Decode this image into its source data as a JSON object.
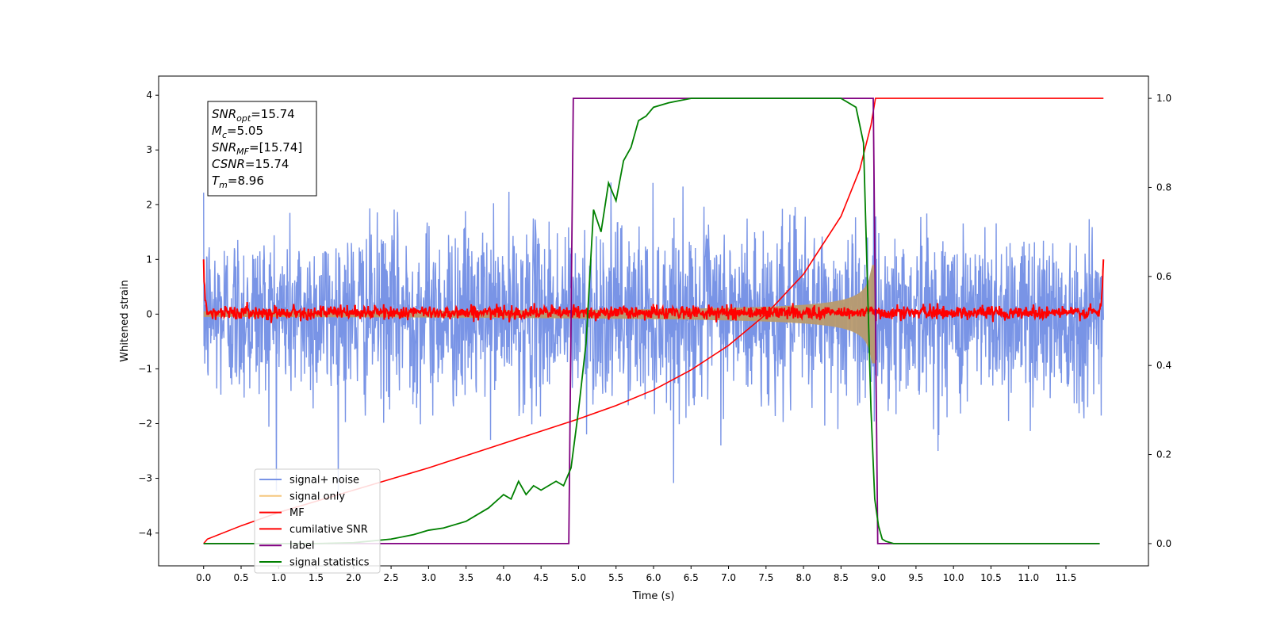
{
  "chart_data": {
    "type": "line",
    "title": "",
    "xlabel": "Time (s)",
    "ylabel": "Whitened strain",
    "xlim": [
      -0.6,
      12.6
    ],
    "ylim": [
      -4.6,
      4.35
    ],
    "y2lim": [
      -0.05,
      1.05
    ],
    "x_ticks": [
      0.0,
      0.5,
      1.0,
      1.5,
      2.0,
      2.5,
      3.0,
      3.5,
      4.0,
      4.5,
      5.0,
      5.5,
      6.0,
      6.5,
      7.0,
      7.5,
      8.0,
      8.5,
      9.0,
      9.5,
      10.0,
      10.5,
      11.0,
      11.5
    ],
    "x_tick_labels": [
      "0.0",
      "0.5",
      "1.0",
      "1.5",
      "2.0",
      "2.5",
      "3.0",
      "3.5",
      "4.0",
      "4.5",
      "5.0",
      "5.5",
      "6.0",
      "6.5",
      "7.0",
      "7.5",
      "8.0",
      "8.5",
      "9.0",
      "9.5",
      "10.0",
      "10.5",
      "11.0",
      "11.5"
    ],
    "y_ticks": [
      -4,
      -3,
      -2,
      -1,
      0,
      1,
      2,
      3,
      4
    ],
    "y_tick_labels": [
      "−4",
      "−3",
      "−2",
      "−1",
      "0",
      "1",
      "2",
      "3",
      "4"
    ],
    "y2_ticks": [
      0.0,
      0.2,
      0.4,
      0.6,
      0.8,
      1.0
    ],
    "y2_tick_labels": [
      "0.0",
      "0.2",
      "0.4",
      "0.6",
      "0.8",
      "1.0"
    ],
    "grid": false,
    "legend_position": "lower-left",
    "annotation": {
      "lines": [
        {
          "sym": "SNR",
          "sub": "opt",
          "value": "=15.74"
        },
        {
          "sym": "M",
          "sub": "c",
          "value": "=5.05"
        },
        {
          "sym": "SNR",
          "sub": "MF",
          "value": "=[15.74]"
        },
        {
          "sym": "CSNR",
          "sub": "",
          "value": "=15.74"
        },
        {
          "sym": "T",
          "sub": "m",
          "value": "=8.96"
        }
      ]
    },
    "series": [
      {
        "name": "signal+ noise",
        "color": "#7994e6",
        "axis": "left",
        "noise": {
          "t_start": 0.0,
          "t_end": 12.0,
          "points": 2400,
          "sigma": 0.8,
          "clip": 4.0
        }
      },
      {
        "name": "signal only",
        "color": "#f5c77e",
        "axis": "left",
        "envelope": {
          "t_start": 0.0,
          "t_end": 8.96,
          "a0": 0.05,
          "a_end": 0.9
        }
      },
      {
        "name": "MF",
        "color": "#ff0000",
        "axis": "left",
        "noise": {
          "t_start": 0.0,
          "t_end": 12.0,
          "points": 1800,
          "sigma": 0.06,
          "edge_value": 1.0
        }
      },
      {
        "name": "cumilative SNR",
        "color": "#ff0000",
        "axis": "right",
        "x": [
          0.0,
          0.05,
          0.5,
          1.0,
          2.0,
          3.0,
          4.0,
          5.0,
          5.5,
          6.0,
          6.5,
          7.0,
          7.5,
          8.0,
          8.5,
          8.75,
          8.9,
          8.96,
          8.97,
          12.0
        ],
        "y": [
          0.0,
          0.01,
          0.04,
          0.07,
          0.12,
          0.17,
          0.225,
          0.28,
          0.31,
          0.345,
          0.39,
          0.445,
          0.515,
          0.605,
          0.735,
          0.84,
          0.94,
          1.0,
          1.0,
          1.0
        ]
      },
      {
        "name": "label",
        "color": "#800080",
        "axis": "right",
        "x": [
          0.0,
          4.87,
          4.93,
          8.93,
          8.99,
          11.95
        ],
        "y": [
          0.0,
          0.0,
          1.0,
          1.0,
          0.0,
          0.0
        ]
      },
      {
        "name": "signal statistics",
        "color": "#008000",
        "axis": "right",
        "x": [
          0.0,
          0.5,
          1.0,
          1.5,
          2.0,
          2.5,
          2.8,
          3.0,
          3.2,
          3.5,
          3.8,
          4.0,
          4.1,
          4.2,
          4.3,
          4.4,
          4.5,
          4.6,
          4.7,
          4.8,
          4.9,
          5.0,
          5.1,
          5.2,
          5.3,
          5.4,
          5.5,
          5.6,
          5.7,
          5.8,
          5.9,
          6.0,
          6.2,
          6.5,
          7.0,
          7.5,
          8.0,
          8.5,
          8.7,
          8.8,
          8.85,
          8.9,
          8.95,
          9.0,
          9.05,
          9.1,
          9.2,
          9.5,
          10.0,
          11.0,
          11.95
        ],
        "y": [
          0.0,
          0.0,
          0.0,
          0.0,
          0.002,
          0.01,
          0.02,
          0.03,
          0.035,
          0.05,
          0.08,
          0.11,
          0.1,
          0.14,
          0.11,
          0.13,
          0.12,
          0.13,
          0.14,
          0.13,
          0.17,
          0.3,
          0.45,
          0.75,
          0.7,
          0.81,
          0.77,
          0.86,
          0.89,
          0.95,
          0.96,
          0.98,
          0.99,
          1.0,
          1.0,
          1.0,
          1.0,
          1.0,
          0.98,
          0.9,
          0.6,
          0.3,
          0.1,
          0.04,
          0.01,
          0.005,
          0.0,
          0.0,
          0.0,
          0.0,
          0.0
        ]
      }
    ]
  }
}
